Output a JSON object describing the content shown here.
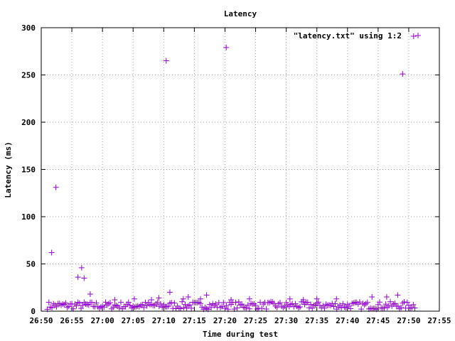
{
  "chart_data": {
    "type": "scatter",
    "title": "Latency",
    "xlabel": "Time during test",
    "ylabel": "Latency (ms)",
    "legend": {
      "label": "\"latency.txt\" using 1:2",
      "placement": "top-right"
    },
    "grid": true,
    "marker": "+",
    "color": "#9400d3",
    "xlim": [
      "26:50",
      "27:55"
    ],
    "ylim": [
      0,
      300
    ],
    "x_ticks": [
      "26:50",
      "26:55",
      "27:00",
      "27:05",
      "27:10",
      "27:15",
      "27:20",
      "27:25",
      "27:30",
      "27:35",
      "27:40",
      "27:45",
      "27:50",
      "27:55"
    ],
    "y_ticks": [
      "0",
      "50",
      "100",
      "150",
      "200",
      "250",
      "300"
    ],
    "series": [
      {
        "points": [
          [
            "26:51.7",
            62
          ],
          [
            "26:52.4",
            131
          ],
          [
            "26:56.0",
            36
          ],
          [
            "26:56.6",
            46
          ],
          [
            "26:57.0",
            35
          ],
          [
            "26:58.0",
            18
          ],
          [
            "27:02.0",
            12
          ],
          [
            "27:05.2",
            13
          ],
          [
            "27:08.0",
            12
          ],
          [
            "27:09.2",
            14
          ],
          [
            "27:10.4",
            265
          ],
          [
            "27:11.0",
            20
          ],
          [
            "27:13.2",
            13
          ],
          [
            "27:14.0",
            15
          ],
          [
            "27:16.0",
            13
          ],
          [
            "27:17.0",
            17
          ],
          [
            "27:20.2",
            279
          ],
          [
            "27:21.0",
            12
          ],
          [
            "27:24.0",
            13
          ],
          [
            "27:30.6",
            13
          ],
          [
            "27:32.8",
            12
          ],
          [
            "27:35.0",
            13
          ],
          [
            "27:38.2",
            13
          ],
          [
            "27:44.0",
            15
          ],
          [
            "27:46.4",
            15
          ],
          [
            "27:48.2",
            17
          ],
          [
            "27:49.0",
            251
          ],
          [
            "27:50.8",
            291
          ]
        ],
        "baseline": {
          "from": "26:51.0",
          "to": "27:51.2",
          "min": 2,
          "max": 10
        }
      }
    ]
  }
}
